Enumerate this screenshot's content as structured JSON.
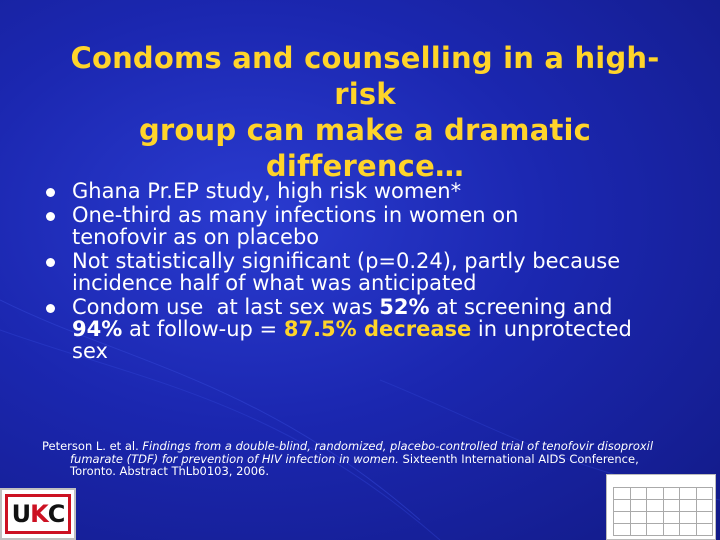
{
  "slide": {
    "title_line1": "Condoms and counselling in a high-risk",
    "title_line2": "group can make a dramatic difference…",
    "bullets": {
      "b1": "Ghana Pr.EP study, high risk women*",
      "b2_line1": "One-third as many infections in women on",
      "b2_line2": "tenofovir as on placebo",
      "b3_line1": "Not statistically significant (p=0.24), partly because",
      "b3_line2": "incidence half of what was anticipated",
      "b4_part1": "Condom use  at last sex was ",
      "b4_pct1": "52%",
      "b4_part2": " at screening and",
      "b4_pct2": "94%",
      "b4_part3": " at follow-up = ",
      "b4_decrease": "87.5% decrease",
      "b4_part4": " in unprotected",
      "b4_part5": "sex"
    },
    "reference": {
      "authors": "Peterson L. et al. ",
      "title_italic_1": "Findings from a double-blind, randomized, placebo-controlled trial of tenofovir disoproxil",
      "title_italic_2": "fumarate (TDF) for prevention of HIV infection in women.",
      "rest_1": " Sixteenth International AIDS Conference,",
      "rest_2": "Toronto. Abstract ThLb0103, 2006."
    },
    "logo_text": {
      "u": "U",
      "k": "K",
      "c": "C"
    },
    "colors": {
      "background": "#1b27b0",
      "title": "#ffd42a",
      "body_text": "#ffffff",
      "logo_red": "#cc1122"
    }
  }
}
